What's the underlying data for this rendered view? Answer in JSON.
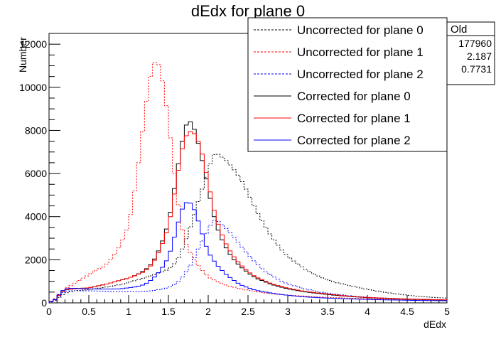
{
  "chart_data": {
    "type": "line",
    "title": "dEdx for plane 0",
    "xlabel": "dEdx",
    "ylabel": "Number",
    "xlim": [
      0,
      5
    ],
    "ylim": [
      0,
      12500
    ],
    "x_ticks": [
      {
        "v": 0,
        "label": "0"
      },
      {
        "v": 0.5,
        "label": "0.5"
      },
      {
        "v": 1,
        "label": "1"
      },
      {
        "v": 1.5,
        "label": "1.5"
      },
      {
        "v": 2,
        "label": "2"
      },
      {
        "v": 2.5,
        "label": "2.5"
      },
      {
        "v": 3,
        "label": "3"
      },
      {
        "v": 3.5,
        "label": "3.5"
      },
      {
        "v": 4,
        "label": "4"
      },
      {
        "v": 4.5,
        "label": "4.5"
      },
      {
        "v": 5,
        "label": "5"
      }
    ],
    "y_ticks": [
      {
        "v": 0,
        "label": "0"
      },
      {
        "v": 2000,
        "label": "2000"
      },
      {
        "v": 4000,
        "label": "4000"
      },
      {
        "v": 6000,
        "label": "6000"
      },
      {
        "v": 8000,
        "label": "8000"
      },
      {
        "v": 10000,
        "label": "10000"
      },
      {
        "v": 12000,
        "label": "12000"
      }
    ],
    "stats_box": {
      "header": "Old",
      "rows": [
        "177960",
        "2.187",
        "0.7731"
      ]
    },
    "legend": {
      "placement": "top-right"
    },
    "series": [
      {
        "name": "Uncorrected for plane 0",
        "color": "#000000",
        "dashed": true,
        "points": [
          [
            0.05,
            50
          ],
          [
            0.1,
            180
          ],
          [
            0.15,
            320
          ],
          [
            0.2,
            450
          ],
          [
            0.3,
            550
          ],
          [
            0.5,
            620
          ],
          [
            0.7,
            720
          ],
          [
            0.9,
            850
          ],
          [
            1.1,
            1050
          ],
          [
            1.3,
            1280
          ],
          [
            1.5,
            1550
          ],
          [
            1.6,
            1900
          ],
          [
            1.7,
            2700
          ],
          [
            1.8,
            3800
          ],
          [
            1.9,
            5000
          ],
          [
            2.0,
            6100
          ],
          [
            2.05,
            6800
          ],
          [
            2.1,
            6950
          ],
          [
            2.2,
            6700
          ],
          [
            2.3,
            6300
          ],
          [
            2.4,
            5800
          ],
          [
            2.5,
            5100
          ],
          [
            2.6,
            4300
          ],
          [
            2.7,
            3650
          ],
          [
            2.8,
            3050
          ],
          [
            2.9,
            2550
          ],
          [
            3.0,
            2150
          ],
          [
            3.2,
            1600
          ],
          [
            3.4,
            1200
          ],
          [
            3.6,
            950
          ],
          [
            3.8,
            780
          ],
          [
            4.0,
            630
          ],
          [
            4.2,
            500
          ],
          [
            4.4,
            400
          ],
          [
            4.6,
            320
          ],
          [
            4.8,
            260
          ],
          [
            5.0,
            220
          ]
        ]
      },
      {
        "name": "Uncorrected for plane 1",
        "color": "#ff0000",
        "dashed": true,
        "points": [
          [
            0.05,
            80
          ],
          [
            0.1,
            300
          ],
          [
            0.15,
            500
          ],
          [
            0.2,
            650
          ],
          [
            0.3,
            850
          ],
          [
            0.4,
            1100
          ],
          [
            0.5,
            1300
          ],
          [
            0.6,
            1550
          ],
          [
            0.7,
            1700
          ],
          [
            0.8,
            2100
          ],
          [
            0.9,
            2700
          ],
          [
            1.0,
            3600
          ],
          [
            1.05,
            4600
          ],
          [
            1.1,
            5800
          ],
          [
            1.15,
            7200
          ],
          [
            1.2,
            8700
          ],
          [
            1.25,
            10000
          ],
          [
            1.3,
            11000
          ],
          [
            1.35,
            11300
          ],
          [
            1.4,
            10800
          ],
          [
            1.45,
            9800
          ],
          [
            1.5,
            8500
          ],
          [
            1.55,
            6800
          ],
          [
            1.6,
            5200
          ],
          [
            1.65,
            3900
          ],
          [
            1.7,
            2900
          ],
          [
            1.8,
            2150
          ],
          [
            1.9,
            1600
          ],
          [
            2.0,
            1200
          ],
          [
            2.2,
            850
          ],
          [
            2.4,
            650
          ],
          [
            2.6,
            520
          ],
          [
            2.8,
            420
          ],
          [
            3.0,
            360
          ],
          [
            3.5,
            250
          ],
          [
            4.0,
            190
          ],
          [
            4.5,
            150
          ],
          [
            5.0,
            120
          ]
        ]
      },
      {
        "name": "Uncorrected for plane 2",
        "color": "#0000ff",
        "dashed": true,
        "points": [
          [
            0.05,
            40
          ],
          [
            0.1,
            200
          ],
          [
            0.15,
            400
          ],
          [
            0.2,
            550
          ],
          [
            0.3,
            560
          ],
          [
            0.5,
            560
          ],
          [
            0.7,
            540
          ],
          [
            0.9,
            520
          ],
          [
            1.1,
            520
          ],
          [
            1.3,
            560
          ],
          [
            1.5,
            700
          ],
          [
            1.6,
            900
          ],
          [
            1.7,
            1300
          ],
          [
            1.8,
            1900
          ],
          [
            1.9,
            2700
          ],
          [
            2.0,
            3400
          ],
          [
            2.05,
            3800
          ],
          [
            2.1,
            3850
          ],
          [
            2.2,
            3550
          ],
          [
            2.3,
            3150
          ],
          [
            2.4,
            2700
          ],
          [
            2.5,
            2250
          ],
          [
            2.6,
            1850
          ],
          [
            2.7,
            1500
          ],
          [
            2.8,
            1250
          ],
          [
            2.9,
            1050
          ],
          [
            3.0,
            880
          ],
          [
            3.2,
            660
          ],
          [
            3.4,
            500
          ],
          [
            3.6,
            400
          ],
          [
            3.8,
            320
          ],
          [
            4.0,
            260
          ],
          [
            4.4,
            190
          ],
          [
            5.0,
            130
          ]
        ]
      },
      {
        "name": "Corrected for plane 0",
        "color": "#000000",
        "dashed": false,
        "points": [
          [
            0.05,
            60
          ],
          [
            0.1,
            250
          ],
          [
            0.15,
            450
          ],
          [
            0.2,
            600
          ],
          [
            0.3,
            650
          ],
          [
            0.5,
            700
          ],
          [
            0.7,
            850
          ],
          [
            0.9,
            1050
          ],
          [
            1.0,
            1150
          ],
          [
            1.1,
            1300
          ],
          [
            1.2,
            1500
          ],
          [
            1.3,
            1850
          ],
          [
            1.4,
            2600
          ],
          [
            1.5,
            3700
          ],
          [
            1.55,
            4700
          ],
          [
            1.6,
            5900
          ],
          [
            1.65,
            7000
          ],
          [
            1.7,
            8000
          ],
          [
            1.75,
            8500
          ],
          [
            1.8,
            8300
          ],
          [
            1.85,
            7800
          ],
          [
            1.9,
            7000
          ],
          [
            1.95,
            6200
          ],
          [
            2.0,
            5300
          ],
          [
            2.05,
            4400
          ],
          [
            2.1,
            3600
          ],
          [
            2.2,
            2700
          ],
          [
            2.3,
            2100
          ],
          [
            2.4,
            1700
          ],
          [
            2.5,
            1400
          ],
          [
            2.6,
            1150
          ],
          [
            2.8,
            850
          ],
          [
            3.0,
            650
          ],
          [
            3.2,
            520
          ],
          [
            3.4,
            430
          ],
          [
            3.6,
            350
          ],
          [
            3.8,
            290
          ],
          [
            4.0,
            240
          ],
          [
            4.5,
            170
          ],
          [
            5.0,
            130
          ]
        ]
      },
      {
        "name": "Corrected for plane 1",
        "color": "#ff0000",
        "dashed": false,
        "points": [
          [
            0.05,
            60
          ],
          [
            0.1,
            250
          ],
          [
            0.15,
            450
          ],
          [
            0.2,
            600
          ],
          [
            0.3,
            650
          ],
          [
            0.5,
            700
          ],
          [
            0.7,
            850
          ],
          [
            0.9,
            1050
          ],
          [
            1.0,
            1150
          ],
          [
            1.1,
            1300
          ],
          [
            1.2,
            1450
          ],
          [
            1.3,
            1800
          ],
          [
            1.4,
            2500
          ],
          [
            1.5,
            3500
          ],
          [
            1.55,
            4500
          ],
          [
            1.6,
            5600
          ],
          [
            1.65,
            6700
          ],
          [
            1.7,
            7600
          ],
          [
            1.75,
            7900
          ],
          [
            1.8,
            8000
          ],
          [
            1.85,
            7700
          ],
          [
            1.9,
            7300
          ],
          [
            1.95,
            6500
          ],
          [
            2.0,
            5600
          ],
          [
            2.05,
            4700
          ],
          [
            2.1,
            3900
          ],
          [
            2.2,
            2900
          ],
          [
            2.3,
            2250
          ],
          [
            2.4,
            1800
          ],
          [
            2.5,
            1450
          ],
          [
            2.6,
            1200
          ],
          [
            2.8,
            880
          ],
          [
            3.0,
            680
          ],
          [
            3.2,
            540
          ],
          [
            3.4,
            450
          ],
          [
            3.6,
            370
          ],
          [
            3.8,
            300
          ],
          [
            4.0,
            250
          ],
          [
            4.5,
            180
          ],
          [
            5.0,
            140
          ]
        ]
      },
      {
        "name": "Corrected for plane 2",
        "color": "#0000ff",
        "dashed": false,
        "points": [
          [
            0.05,
            50
          ],
          [
            0.1,
            250
          ],
          [
            0.15,
            500
          ],
          [
            0.2,
            650
          ],
          [
            0.3,
            680
          ],
          [
            0.5,
            650
          ],
          [
            0.7,
            640
          ],
          [
            0.9,
            650
          ],
          [
            1.1,
            750
          ],
          [
            1.2,
            850
          ],
          [
            1.3,
            1100
          ],
          [
            1.4,
            1500
          ],
          [
            1.5,
            2100
          ],
          [
            1.55,
            2700
          ],
          [
            1.6,
            3400
          ],
          [
            1.65,
            4100
          ],
          [
            1.7,
            4600
          ],
          [
            1.75,
            4700
          ],
          [
            1.8,
            4550
          ],
          [
            1.85,
            4100
          ],
          [
            1.9,
            3500
          ],
          [
            1.95,
            2900
          ],
          [
            2.0,
            2350
          ],
          [
            2.1,
            1800
          ],
          [
            2.2,
            1400
          ],
          [
            2.3,
            1100
          ],
          [
            2.4,
            850
          ],
          [
            2.5,
            700
          ],
          [
            2.6,
            580
          ],
          [
            2.8,
            450
          ],
          [
            3.0,
            350
          ],
          [
            3.2,
            280
          ],
          [
            3.5,
            220
          ],
          [
            4.0,
            160
          ],
          [
            4.5,
            120
          ],
          [
            5.0,
            100
          ]
        ]
      }
    ]
  }
}
